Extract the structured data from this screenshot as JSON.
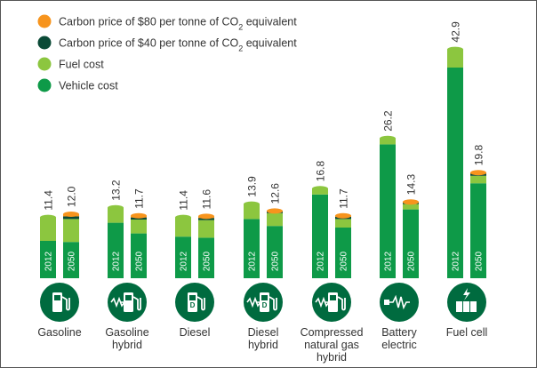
{
  "colors": {
    "vehicle": "#0e9a48",
    "fuel": "#8cc63f",
    "carbon40": "#0b4a36",
    "carbon80": "#f7941d",
    "circle": "#006b3f",
    "circle_icon": "#ffffff",
    "bar_text": "#ffffff",
    "text": "#333333",
    "border": "#555555"
  },
  "legend": [
    {
      "key": "carbon80",
      "label_main": "Carbon price of $80 per tonne of CO",
      "label_sub": "2",
      "label_tail": " equivalent",
      "icon": "orange-dot"
    },
    {
      "key": "carbon40",
      "label_main": "Carbon price of $40 per tonne of CO",
      "label_sub": "2",
      "label_tail": " equivalent",
      "icon": "dark-green-dot"
    },
    {
      "key": "fuel",
      "label_main": "Fuel cost",
      "label_sub": "",
      "label_tail": "",
      "icon": "light-green-dot"
    },
    {
      "key": "vehicle",
      "label_main": "Vehicle cost",
      "label_sub": "",
      "label_tail": "",
      "icon": "green-dot"
    }
  ],
  "chart_data": {
    "type": "bar",
    "stacked": true,
    "years": [
      "2012",
      "2050"
    ],
    "categories": [
      {
        "name": "Gasoline",
        "icon": "gas-pump-icon",
        "bars": [
          {
            "year": "2012",
            "total": "11.4",
            "vehicle": 7.0,
            "fuel": 4.4,
            "carbon40": 0.0,
            "carbon80": 0.0
          },
          {
            "year": "2050",
            "total": "12.0",
            "vehicle": 6.8,
            "fuel": 4.3,
            "carbon40": 0.5,
            "carbon80": 0.4
          }
        ]
      },
      {
        "name": "Gasoline hybrid",
        "icon": "plug-in-pump-icon",
        "bars": [
          {
            "year": "2012",
            "total": "13.2",
            "vehicle": 10.4,
            "fuel": 2.8,
            "carbon40": 0.0,
            "carbon80": 0.0
          },
          {
            "year": "2050",
            "total": "11.7",
            "vehicle": 8.4,
            "fuel": 2.6,
            "carbon40": 0.4,
            "carbon80": 0.3
          }
        ]
      },
      {
        "name": "Diesel",
        "icon": "diesel-pump-icon",
        "bars": [
          {
            "year": "2012",
            "total": "11.4",
            "vehicle": 7.8,
            "fuel": 3.6,
            "carbon40": 0.0,
            "carbon80": 0.0
          },
          {
            "year": "2050",
            "total": "11.6",
            "vehicle": 7.6,
            "fuel": 3.3,
            "carbon40": 0.4,
            "carbon80": 0.3
          }
        ]
      },
      {
        "name": "Diesel hybrid",
        "icon": "diesel-hybrid-pump-icon",
        "bars": [
          {
            "year": "2012",
            "total": "13.9",
            "vehicle": 11.1,
            "fuel": 2.8,
            "carbon40": 0.0,
            "carbon80": 0.0
          },
          {
            "year": "2050",
            "total": "12.6",
            "vehicle": 9.8,
            "fuel": 2.4,
            "carbon40": 0.3,
            "carbon80": 0.1
          }
        ]
      },
      {
        "name": "Compressed natural gas hybrid",
        "icon": "cng-pump-icon",
        "bars": [
          {
            "year": "2012",
            "total": "16.8",
            "vehicle": 15.7,
            "fuel": 1.1,
            "carbon40": 0.0,
            "carbon80": 0.0
          },
          {
            "year": "2050",
            "total": "11.7",
            "vehicle": 9.5,
            "fuel": 1.6,
            "carbon40": 0.4,
            "carbon80": 0.2
          }
        ]
      },
      {
        "name": "Battery electric",
        "icon": "plug-power-icon",
        "bars": [
          {
            "year": "2012",
            "total": "26.2",
            "vehicle": 25.1,
            "fuel": 1.1,
            "carbon40": 0.0,
            "carbon80": 0.0
          },
          {
            "year": "2050",
            "total": "14.3",
            "vehicle": 12.9,
            "fuel": 1.0,
            "carbon40": 0.3,
            "carbon80": 0.1
          }
        ]
      },
      {
        "name": "Fuel cell",
        "icon": "fuel-cell-icon",
        "bars": [
          {
            "year": "2012",
            "total": "42.9",
            "vehicle": 39.5,
            "fuel": 3.4,
            "carbon40": 0.0,
            "carbon80": 0.0
          },
          {
            "year": "2050",
            "total": "19.8",
            "vehicle": 17.8,
            "fuel": 1.4,
            "carbon40": 0.4,
            "carbon80": 0.2
          }
        ]
      }
    ]
  }
}
